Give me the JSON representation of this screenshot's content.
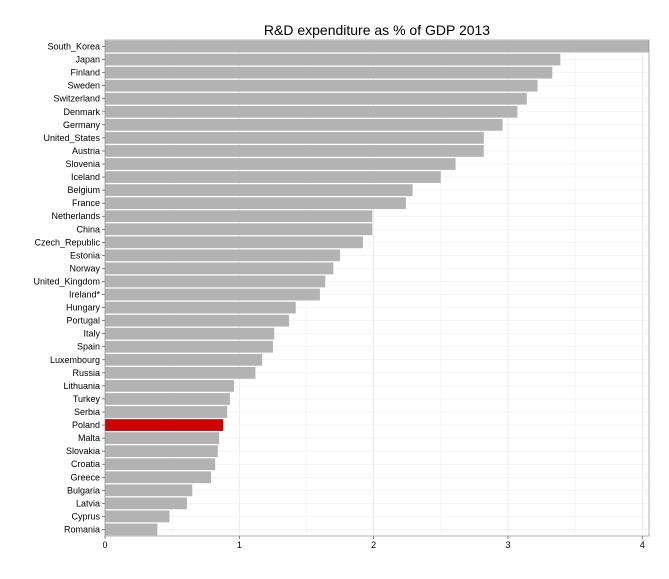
{
  "chart_data": {
    "type": "bar",
    "orientation": "horizontal",
    "title": "R&D expenditure as % of GDP 2013",
    "xlabel": "",
    "ylabel": "",
    "xlim": [
      0,
      4.05
    ],
    "x_ticks": [
      0,
      1,
      2,
      3,
      4
    ],
    "grid": true,
    "bar_color": "#b3b3b3",
    "highlight_color": "#cc0000",
    "highlight_category": "Poland",
    "categories": [
      "South_Korea",
      "Japan",
      "Finland",
      "Sweden",
      "Switzerland",
      "Denmark",
      "Germany",
      "United_States",
      "Austria",
      "Slovenia",
      "Iceland",
      "Belgium",
      "France",
      "Netherlands",
      "China",
      "Czech_Republic",
      "Estonia",
      "Norway",
      "United_Kingdom",
      "Ireland*",
      "Hungary",
      "Portugal",
      "Italy",
      "Spain",
      "Luxembourg",
      "Russia",
      "Lithuania",
      "Turkey",
      "Serbia",
      "Poland",
      "Malta",
      "Slovakia",
      "Croatia",
      "Greece",
      "Bulgaria",
      "Latvia",
      "Cyprus",
      "Romania"
    ],
    "values": [
      4.15,
      3.39,
      3.33,
      3.22,
      3.14,
      3.07,
      2.96,
      2.82,
      2.82,
      2.61,
      2.5,
      2.29,
      2.24,
      1.99,
      1.99,
      1.92,
      1.75,
      1.7,
      1.64,
      1.6,
      1.42,
      1.37,
      1.26,
      1.25,
      1.17,
      1.12,
      0.96,
      0.93,
      0.91,
      0.88,
      0.85,
      0.84,
      0.82,
      0.79,
      0.65,
      0.61,
      0.48,
      0.39
    ]
  }
}
